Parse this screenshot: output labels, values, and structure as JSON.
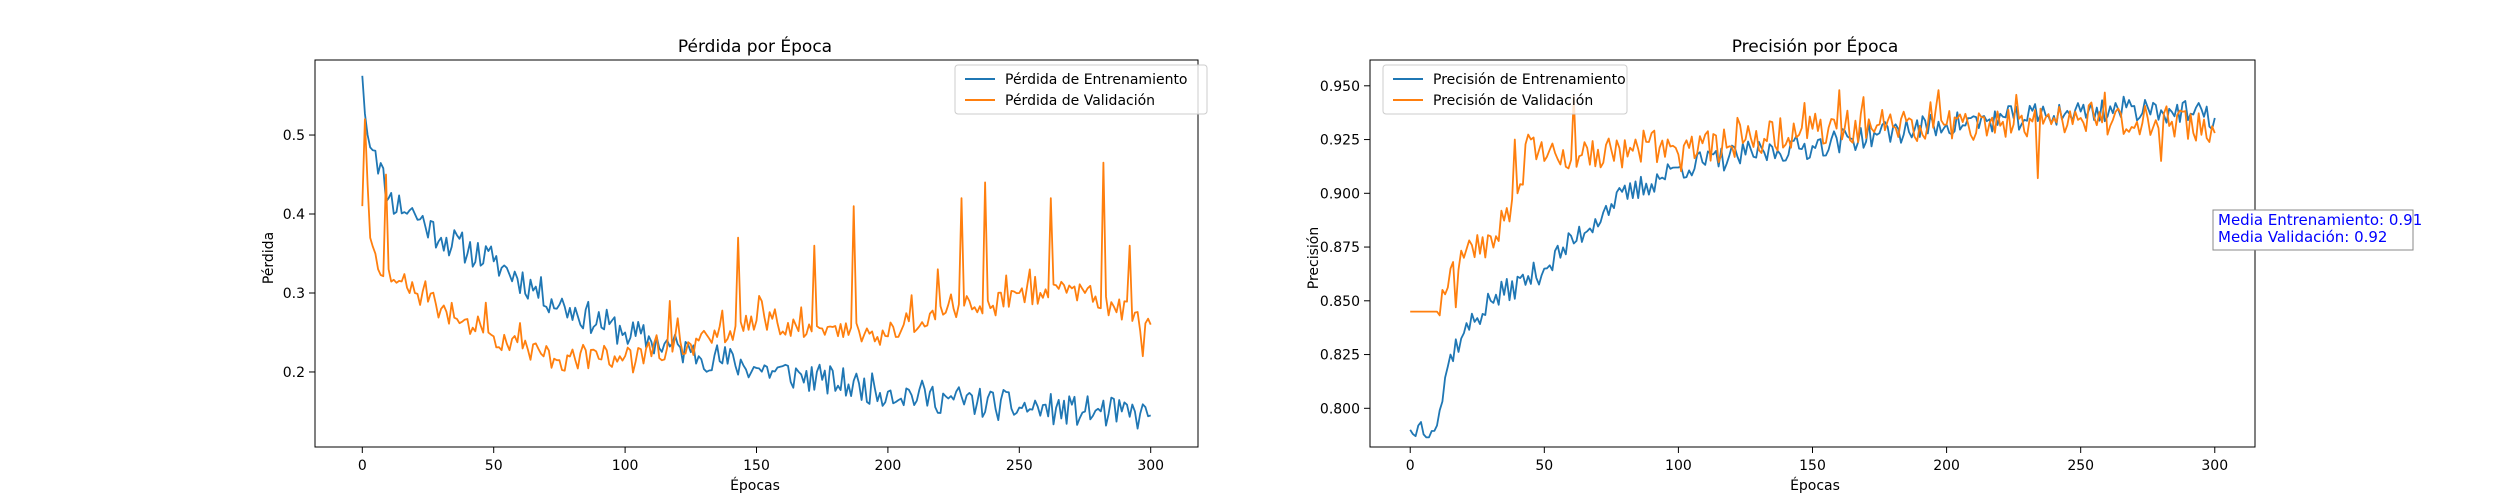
{
  "chart_data": [
    {
      "type": "line",
      "title": "Pérdida por Época",
      "xlabel": "Épocas",
      "ylabel": "Pérdida",
      "xlim": [
        -18,
        318
      ],
      "ylim": [
        0.105,
        0.595
      ],
      "xticks": [
        0,
        50,
        100,
        150,
        200,
        250,
        300
      ],
      "yticks": [
        0.2,
        0.3,
        0.4,
        0.5
      ],
      "ytick_labels": [
        "0.2",
        "0.3",
        "0.4",
        "0.5"
      ],
      "legend": "top-right",
      "grid": false,
      "series": [
        {
          "name": "Pérdida de Entrenamiento",
          "color": "#1f77b4",
          "seed": 11,
          "noise": 0.02,
          "anchors": [
            [
              0,
              0.575
            ],
            [
              2,
              0.5
            ],
            [
              5,
              0.48
            ],
            [
              10,
              0.42
            ],
            [
              20,
              0.4
            ],
            [
              30,
              0.37
            ],
            [
              50,
              0.34
            ],
            [
              75,
              0.285
            ],
            [
              100,
              0.25
            ],
            [
              125,
              0.225
            ],
            [
              150,
              0.205
            ],
            [
              175,
              0.19
            ],
            [
              200,
              0.175
            ],
            [
              225,
              0.165
            ],
            [
              250,
              0.155
            ],
            [
              275,
              0.15
            ],
            [
              300,
              0.145
            ]
          ]
        },
        {
          "name": "Pérdida de Validación",
          "color": "#ff7f0e",
          "seed": 23,
          "noise": 0.015,
          "anchors": [
            [
              0,
              0.41
            ],
            [
              1,
              0.52
            ],
            [
              3,
              0.37
            ],
            [
              6,
              0.33
            ],
            [
              10,
              0.33
            ],
            [
              20,
              0.3
            ],
            [
              30,
              0.28
            ],
            [
              50,
              0.245
            ],
            [
              75,
              0.215
            ],
            [
              100,
              0.22
            ],
            [
              125,
              0.235
            ],
            [
              150,
              0.265
            ],
            [
              175,
              0.255
            ],
            [
              200,
              0.245
            ],
            [
              225,
              0.28
            ],
            [
              250,
              0.3
            ],
            [
              275,
              0.3
            ],
            [
              300,
              0.26
            ]
          ],
          "spikes": [
            [
              9,
              0.45
            ],
            [
              117,
              0.29
            ],
            [
              143,
              0.37
            ],
            [
              172,
              0.36
            ],
            [
              187,
              0.41
            ],
            [
              219,
              0.33
            ],
            [
              228,
              0.42
            ],
            [
              237,
              0.44
            ],
            [
              262,
              0.42
            ],
            [
              282,
              0.465
            ],
            [
              292,
              0.36
            ],
            [
              297,
              0.22
            ]
          ],
          "spike_amp": 0.04
        }
      ]
    },
    {
      "type": "line",
      "title": "Precisión por Época",
      "xlabel": "Épocas",
      "ylabel": "Precisión",
      "xlim": [
        -15,
        315
      ],
      "ylim": [
        0.782,
        0.962
      ],
      "xticks": [
        0,
        50,
        100,
        150,
        200,
        250,
        300
      ],
      "yticks": [
        0.8,
        0.825,
        0.85,
        0.875,
        0.9,
        0.925,
        0.95
      ],
      "ytick_labels": [
        "0.800",
        "0.825",
        "0.850",
        "0.875",
        "0.900",
        "0.925",
        "0.950"
      ],
      "legend": "top-left",
      "grid": false,
      "series": [
        {
          "name": "Precisión de Entrenamiento",
          "color": "#1f77b4",
          "seed": 37,
          "noise": 0.006,
          "anchors": [
            [
              0,
              0.79
            ],
            [
              1,
              0.788
            ],
            [
              3,
              0.792
            ],
            [
              10,
              0.792
            ],
            [
              15,
              0.825
            ],
            [
              20,
              0.835
            ],
            [
              30,
              0.85
            ],
            [
              50,
              0.865
            ],
            [
              75,
              0.895
            ],
            [
              100,
              0.912
            ],
            [
              125,
              0.918
            ],
            [
              150,
              0.922
            ],
            [
              175,
              0.928
            ],
            [
              200,
              0.932
            ],
            [
              225,
              0.935
            ],
            [
              250,
              0.938
            ],
            [
              275,
              0.94
            ],
            [
              300,
              0.935
            ]
          ]
        },
        {
          "name": "Precisión de Validación",
          "color": "#ff7f0e",
          "seed": 53,
          "noise": 0.008,
          "flat_until": 10,
          "anchors": [
            [
              0,
              0.845
            ],
            [
              5,
              0.845
            ],
            [
              10,
              0.845
            ],
            [
              15,
              0.865
            ],
            [
              20,
              0.87
            ],
            [
              30,
              0.88
            ],
            [
              40,
              0.9
            ],
            [
              45,
              0.925
            ],
            [
              50,
              0.915
            ],
            [
              75,
              0.92
            ],
            [
              100,
              0.918
            ],
            [
              125,
              0.925
            ],
            [
              150,
              0.93
            ],
            [
              175,
              0.932
            ],
            [
              200,
              0.932
            ],
            [
              225,
              0.932
            ],
            [
              250,
              0.935
            ],
            [
              275,
              0.935
            ],
            [
              300,
              0.928
            ]
          ],
          "spikes": [
            [
              17,
              0.847
            ],
            [
              39,
              0.925
            ],
            [
              61,
              0.945
            ],
            [
              160,
              0.948
            ],
            [
              197,
              0.948
            ],
            [
              234,
              0.907
            ],
            [
              280,
              0.915
            ]
          ],
          "spike_amp": 0.01
        }
      ],
      "annotation": {
        "lines": [
          "Media Entrenamiento: 0.91",
          "Media Validación: 0.92"
        ],
        "color": "#0000ff"
      }
    }
  ]
}
